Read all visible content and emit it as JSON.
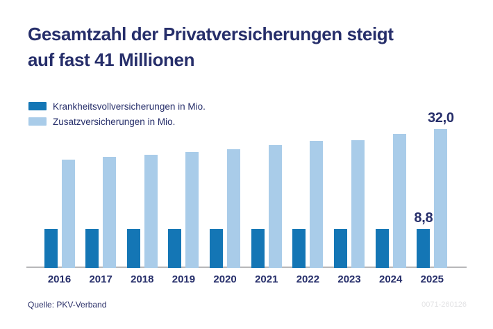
{
  "title": {
    "line1": "Gesamtzahl der Privatversicherungen steigt",
    "line2": "auf fast 41 Millionen"
  },
  "legend": [
    {
      "label": "Krankheitsvollversicherungen in Mio.",
      "color": "#1476b5"
    },
    {
      "label": "Zusatzversicherungen in Mio.",
      "color": "#a9cce9"
    }
  ],
  "footer": {
    "source": "Quelle: PKV-Verband",
    "ref_code": "0071-260126"
  },
  "colors": {
    "headline": "#262e6a",
    "dark_bar": "#1476b5",
    "light_bar": "#a9cce9",
    "axis_line": "#b7b7b9",
    "background": "#ffffff",
    "ref_code_gray": "#e3e3e5"
  },
  "chart_data": {
    "type": "bar",
    "categories": [
      "2016",
      "2017",
      "2018",
      "2019",
      "2020",
      "2021",
      "2022",
      "2023",
      "2024",
      "2025"
    ],
    "series": [
      {
        "name": "Krankheitsvollversicherungen in Mio.",
        "color": "#1476b5",
        "values": [
          8.8,
          8.8,
          8.8,
          8.8,
          8.8,
          8.8,
          8.8,
          8.8,
          8.8,
          8.8
        ]
      },
      {
        "name": "Zusatzversicherungen in Mio.",
        "color": "#a9cce9",
        "values": [
          25.0,
          25.5,
          26.0,
          26.7,
          27.4,
          28.3,
          29.2,
          29.5,
          30.9,
          32.0
        ]
      }
    ],
    "value_labels": [
      {
        "category": "2025",
        "series_index": 0,
        "text": "8,8"
      },
      {
        "category": "2025",
        "series_index": 1,
        "text": "32,0"
      }
    ],
    "title": "Gesamtzahl der Privatversicherungen steigt auf fast 41 Millionen",
    "xlabel": "",
    "ylabel": "",
    "ylim": [
      0,
      34
    ],
    "grid": false,
    "y_axis_visible": false,
    "legend_position": "top-left"
  }
}
